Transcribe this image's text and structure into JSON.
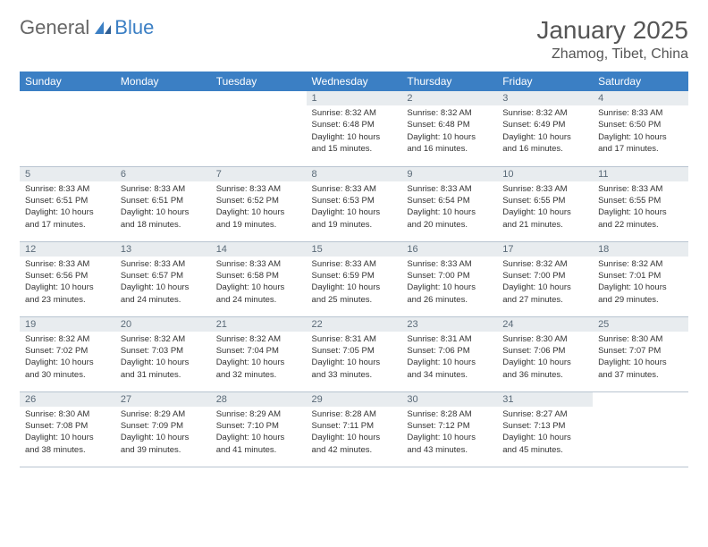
{
  "logo": {
    "word1": "General",
    "word2": "Blue"
  },
  "title": "January 2025",
  "location": "Zhamog, Tibet, China",
  "colors": {
    "header_bg": "#3b7fc4",
    "header_text": "#ffffff",
    "daynum_bg": "#e8ecef",
    "daynum_text": "#5a6a78",
    "cell_border": "#b8c4d0",
    "body_text": "#333333",
    "title_text": "#555555"
  },
  "weekdays": [
    "Sunday",
    "Monday",
    "Tuesday",
    "Wednesday",
    "Thursday",
    "Friday",
    "Saturday"
  ],
  "days": [
    {
      "n": "",
      "sr": "",
      "ss": "",
      "d1": "",
      "d2": ""
    },
    {
      "n": "",
      "sr": "",
      "ss": "",
      "d1": "",
      "d2": ""
    },
    {
      "n": "",
      "sr": "",
      "ss": "",
      "d1": "",
      "d2": ""
    },
    {
      "n": "1",
      "sr": "Sunrise: 8:32 AM",
      "ss": "Sunset: 6:48 PM",
      "d1": "Daylight: 10 hours",
      "d2": "and 15 minutes."
    },
    {
      "n": "2",
      "sr": "Sunrise: 8:32 AM",
      "ss": "Sunset: 6:48 PM",
      "d1": "Daylight: 10 hours",
      "d2": "and 16 minutes."
    },
    {
      "n": "3",
      "sr": "Sunrise: 8:32 AM",
      "ss": "Sunset: 6:49 PM",
      "d1": "Daylight: 10 hours",
      "d2": "and 16 minutes."
    },
    {
      "n": "4",
      "sr": "Sunrise: 8:33 AM",
      "ss": "Sunset: 6:50 PM",
      "d1": "Daylight: 10 hours",
      "d2": "and 17 minutes."
    },
    {
      "n": "5",
      "sr": "Sunrise: 8:33 AM",
      "ss": "Sunset: 6:51 PM",
      "d1": "Daylight: 10 hours",
      "d2": "and 17 minutes."
    },
    {
      "n": "6",
      "sr": "Sunrise: 8:33 AM",
      "ss": "Sunset: 6:51 PM",
      "d1": "Daylight: 10 hours",
      "d2": "and 18 minutes."
    },
    {
      "n": "7",
      "sr": "Sunrise: 8:33 AM",
      "ss": "Sunset: 6:52 PM",
      "d1": "Daylight: 10 hours",
      "d2": "and 19 minutes."
    },
    {
      "n": "8",
      "sr": "Sunrise: 8:33 AM",
      "ss": "Sunset: 6:53 PM",
      "d1": "Daylight: 10 hours",
      "d2": "and 19 minutes."
    },
    {
      "n": "9",
      "sr": "Sunrise: 8:33 AM",
      "ss": "Sunset: 6:54 PM",
      "d1": "Daylight: 10 hours",
      "d2": "and 20 minutes."
    },
    {
      "n": "10",
      "sr": "Sunrise: 8:33 AM",
      "ss": "Sunset: 6:55 PM",
      "d1": "Daylight: 10 hours",
      "d2": "and 21 minutes."
    },
    {
      "n": "11",
      "sr": "Sunrise: 8:33 AM",
      "ss": "Sunset: 6:55 PM",
      "d1": "Daylight: 10 hours",
      "d2": "and 22 minutes."
    },
    {
      "n": "12",
      "sr": "Sunrise: 8:33 AM",
      "ss": "Sunset: 6:56 PM",
      "d1": "Daylight: 10 hours",
      "d2": "and 23 minutes."
    },
    {
      "n": "13",
      "sr": "Sunrise: 8:33 AM",
      "ss": "Sunset: 6:57 PM",
      "d1": "Daylight: 10 hours",
      "d2": "and 24 minutes."
    },
    {
      "n": "14",
      "sr": "Sunrise: 8:33 AM",
      "ss": "Sunset: 6:58 PM",
      "d1": "Daylight: 10 hours",
      "d2": "and 24 minutes."
    },
    {
      "n": "15",
      "sr": "Sunrise: 8:33 AM",
      "ss": "Sunset: 6:59 PM",
      "d1": "Daylight: 10 hours",
      "d2": "and 25 minutes."
    },
    {
      "n": "16",
      "sr": "Sunrise: 8:33 AM",
      "ss": "Sunset: 7:00 PM",
      "d1": "Daylight: 10 hours",
      "d2": "and 26 minutes."
    },
    {
      "n": "17",
      "sr": "Sunrise: 8:32 AM",
      "ss": "Sunset: 7:00 PM",
      "d1": "Daylight: 10 hours",
      "d2": "and 27 minutes."
    },
    {
      "n": "18",
      "sr": "Sunrise: 8:32 AM",
      "ss": "Sunset: 7:01 PM",
      "d1": "Daylight: 10 hours",
      "d2": "and 29 minutes."
    },
    {
      "n": "19",
      "sr": "Sunrise: 8:32 AM",
      "ss": "Sunset: 7:02 PM",
      "d1": "Daylight: 10 hours",
      "d2": "and 30 minutes."
    },
    {
      "n": "20",
      "sr": "Sunrise: 8:32 AM",
      "ss": "Sunset: 7:03 PM",
      "d1": "Daylight: 10 hours",
      "d2": "and 31 minutes."
    },
    {
      "n": "21",
      "sr": "Sunrise: 8:32 AM",
      "ss": "Sunset: 7:04 PM",
      "d1": "Daylight: 10 hours",
      "d2": "and 32 minutes."
    },
    {
      "n": "22",
      "sr": "Sunrise: 8:31 AM",
      "ss": "Sunset: 7:05 PM",
      "d1": "Daylight: 10 hours",
      "d2": "and 33 minutes."
    },
    {
      "n": "23",
      "sr": "Sunrise: 8:31 AM",
      "ss": "Sunset: 7:06 PM",
      "d1": "Daylight: 10 hours",
      "d2": "and 34 minutes."
    },
    {
      "n": "24",
      "sr": "Sunrise: 8:30 AM",
      "ss": "Sunset: 7:06 PM",
      "d1": "Daylight: 10 hours",
      "d2": "and 36 minutes."
    },
    {
      "n": "25",
      "sr": "Sunrise: 8:30 AM",
      "ss": "Sunset: 7:07 PM",
      "d1": "Daylight: 10 hours",
      "d2": "and 37 minutes."
    },
    {
      "n": "26",
      "sr": "Sunrise: 8:30 AM",
      "ss": "Sunset: 7:08 PM",
      "d1": "Daylight: 10 hours",
      "d2": "and 38 minutes."
    },
    {
      "n": "27",
      "sr": "Sunrise: 8:29 AM",
      "ss": "Sunset: 7:09 PM",
      "d1": "Daylight: 10 hours",
      "d2": "and 39 minutes."
    },
    {
      "n": "28",
      "sr": "Sunrise: 8:29 AM",
      "ss": "Sunset: 7:10 PM",
      "d1": "Daylight: 10 hours",
      "d2": "and 41 minutes."
    },
    {
      "n": "29",
      "sr": "Sunrise: 8:28 AM",
      "ss": "Sunset: 7:11 PM",
      "d1": "Daylight: 10 hours",
      "d2": "and 42 minutes."
    },
    {
      "n": "30",
      "sr": "Sunrise: 8:28 AM",
      "ss": "Sunset: 7:12 PM",
      "d1": "Daylight: 10 hours",
      "d2": "and 43 minutes."
    },
    {
      "n": "31",
      "sr": "Sunrise: 8:27 AM",
      "ss": "Sunset: 7:13 PM",
      "d1": "Daylight: 10 hours",
      "d2": "and 45 minutes."
    },
    {
      "n": "",
      "sr": "",
      "ss": "",
      "d1": "",
      "d2": ""
    }
  ]
}
